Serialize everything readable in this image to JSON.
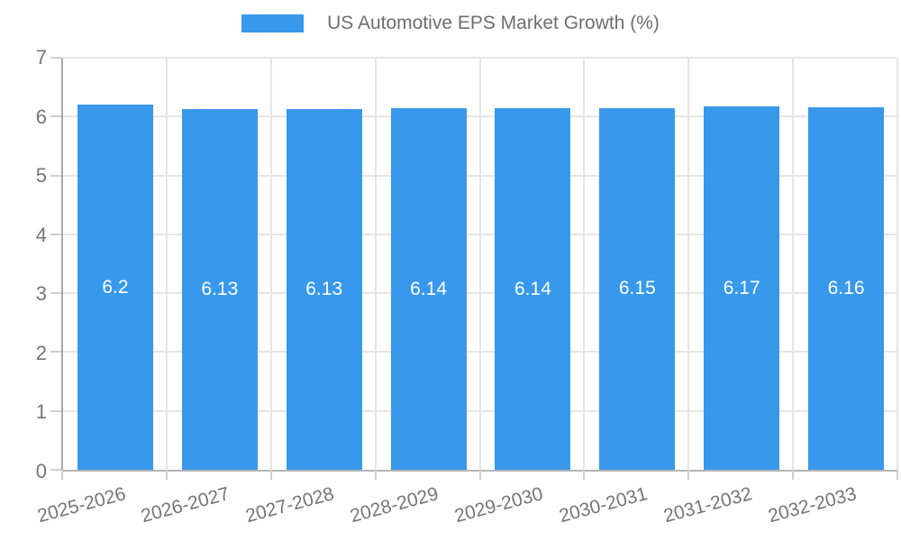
{
  "chart_data": {
    "type": "bar",
    "title": "US Automotive EPS Market Growth (%)",
    "legend": {
      "position": "top",
      "label": "US Automotive EPS Market Growth (%)"
    },
    "categories": [
      "2025-2026",
      "2026-2027",
      "2027-2028",
      "2028-2029",
      "2029-2030",
      "2030-2031",
      "2031-2032",
      "2032-2033"
    ],
    "values": [
      6.2,
      6.13,
      6.13,
      6.14,
      6.14,
      6.15,
      6.17,
      6.16
    ],
    "value_labels": [
      "6.2",
      "6.13",
      "6.13",
      "6.14",
      "6.14",
      "6.15",
      "6.17",
      "6.16"
    ],
    "xlabel": "",
    "ylabel": "",
    "ylim": [
      0,
      7
    ],
    "yticks": [
      0,
      1,
      2,
      3,
      4,
      5,
      6,
      7
    ],
    "grid": "on",
    "x_label_rotation_deg": -15,
    "colors": {
      "bar": "#3898ec",
      "bar_value_text": "#ffffff",
      "axis_text": "#757575",
      "legend_text": "#6e6e6e",
      "gridline": "#e6e6e6",
      "axis_line": "#b0b0b0",
      "background": "#ffffff"
    }
  }
}
